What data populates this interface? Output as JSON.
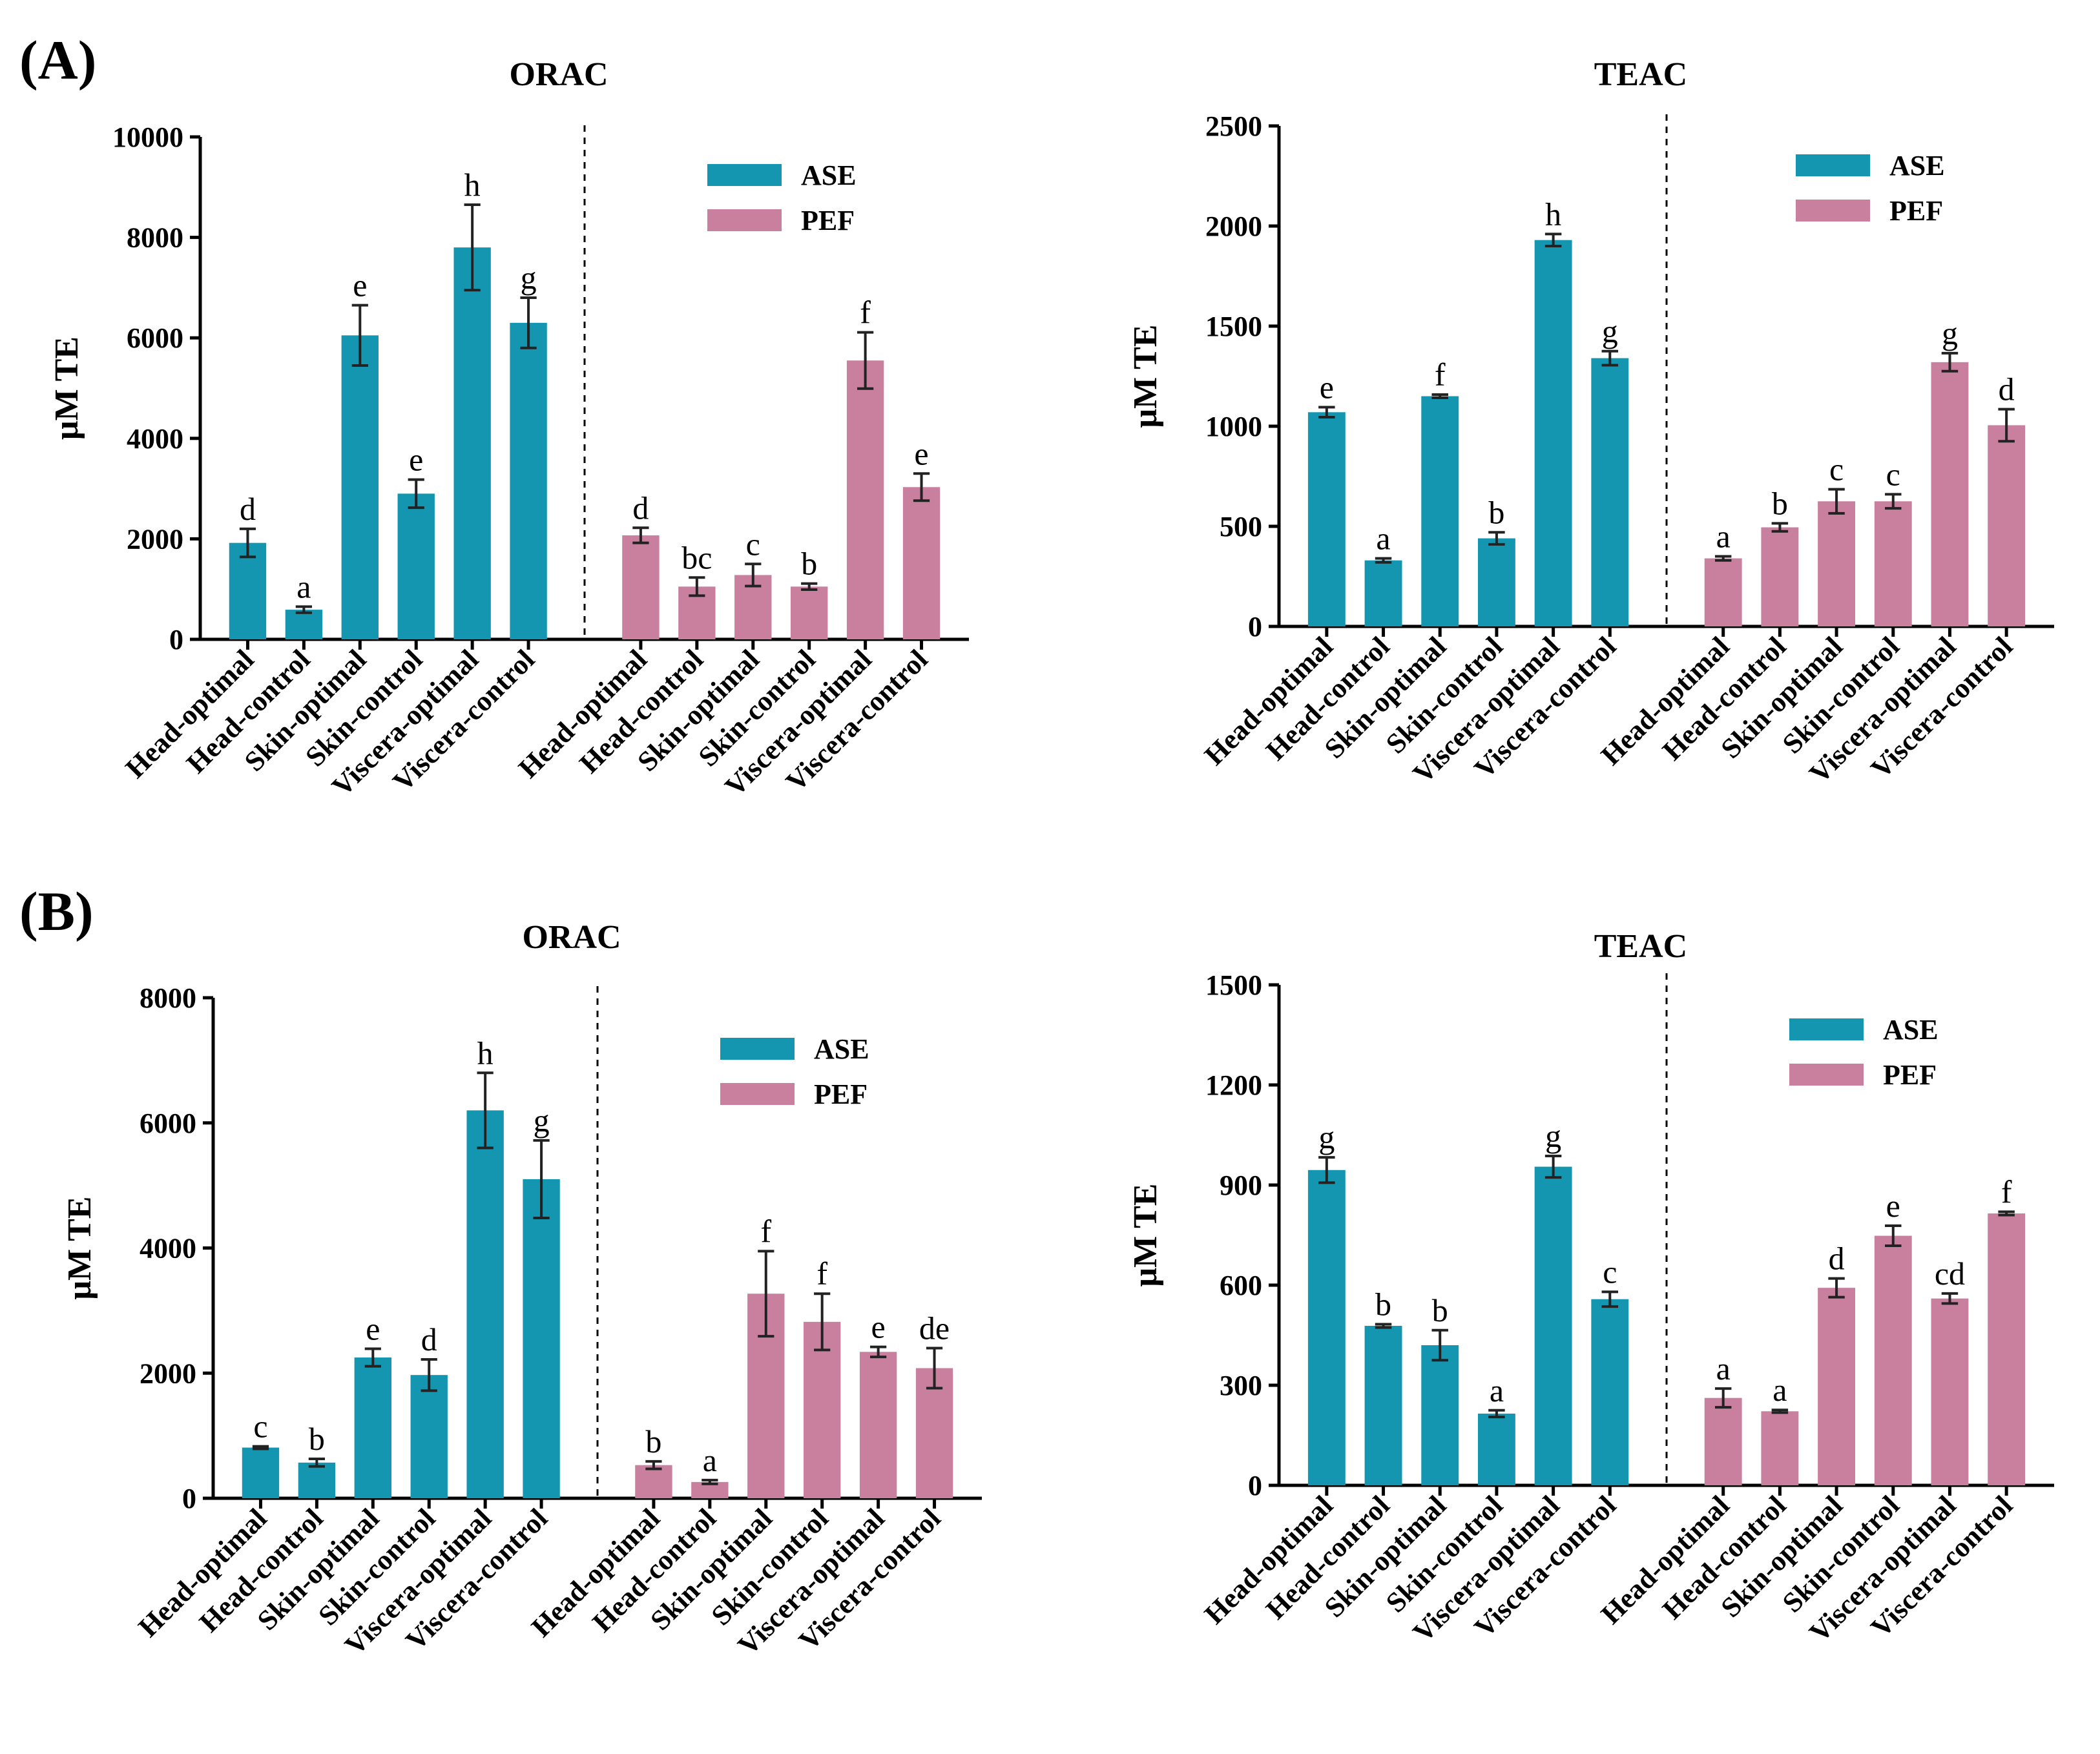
{
  "panels": [
    {
      "label": "(A)"
    },
    {
      "label": "(B)"
    }
  ],
  "colors": {
    "ASE": "#1496b0",
    "PEF": "#c9809e"
  },
  "chart_data": [
    {
      "type": "bar",
      "panel": "(A)",
      "title": "ORAC",
      "ylabel": "μM TE",
      "ylim": [
        0,
        10000
      ],
      "yticks": [
        0,
        2000,
        4000,
        6000,
        8000,
        10000
      ],
      "legend": [
        "ASE",
        "PEF"
      ],
      "legend_position": "top-right",
      "groups": [
        {
          "name": "ASE",
          "categories": [
            "Head-optimal",
            "Head-control",
            "Skin-optimal",
            "Skin-control",
            "Viscera-optimal",
            "Viscera-control"
          ],
          "values": [
            1920,
            590,
            6050,
            2900,
            7800,
            6300
          ],
          "errors": [
            280,
            60,
            600,
            280,
            850,
            500
          ],
          "letters": [
            "d",
            "a",
            "e",
            "e",
            "h",
            "g"
          ]
        },
        {
          "name": "PEF",
          "categories": [
            "Head-optimal",
            "Head-control",
            "Skin-optimal",
            "Skin-control",
            "Viscera-optimal",
            "Viscera-control"
          ],
          "values": [
            2070,
            1050,
            1280,
            1050,
            5550,
            3030
          ],
          "errors": [
            150,
            180,
            220,
            60,
            560,
            270
          ],
          "letters": [
            "d",
            "bc",
            "c",
            "b",
            "f",
            "e"
          ]
        }
      ]
    },
    {
      "type": "bar",
      "panel": "(A)",
      "title": "TEAC",
      "ylabel": "μM TE",
      "ylim": [
        0,
        2500
      ],
      "yticks": [
        0,
        500,
        1000,
        1500,
        2000,
        2500
      ],
      "legend": [
        "ASE",
        "PEF"
      ],
      "legend_position": "top-right",
      "groups": [
        {
          "name": "ASE",
          "categories": [
            "Head-optimal",
            "Head-control",
            "Skin-optimal",
            "Skin-control",
            "Viscera-optimal",
            "Viscera-control"
          ],
          "values": [
            1070,
            330,
            1150,
            440,
            1930,
            1340
          ],
          "errors": [
            25,
            10,
            8,
            30,
            30,
            35
          ],
          "letters": [
            "e",
            "a",
            "f",
            "b",
            "h",
            "g"
          ]
        },
        {
          "name": "PEF",
          "categories": [
            "Head-optimal",
            "Head-control",
            "Skin-optimal",
            "Skin-control",
            "Viscera-optimal",
            "Viscera-control"
          ],
          "values": [
            340,
            495,
            625,
            625,
            1320,
            1005
          ],
          "errors": [
            10,
            20,
            60,
            35,
            45,
            80
          ],
          "letters": [
            "a",
            "b",
            "c",
            "c",
            "g",
            "d"
          ]
        }
      ]
    },
    {
      "type": "bar",
      "panel": "(B)",
      "title": "ORAC",
      "ylabel": "μM TE",
      "ylim": [
        0,
        8000
      ],
      "yticks": [
        0,
        2000,
        4000,
        6000,
        8000
      ],
      "legend": [
        "ASE",
        "PEF"
      ],
      "legend_position": "top-right",
      "groups": [
        {
          "name": "ASE",
          "categories": [
            "Head-optimal",
            "Head-control",
            "Skin-optimal",
            "Skin-control",
            "Viscera-optimal",
            "Viscera-control"
          ],
          "values": [
            810,
            570,
            2250,
            1970,
            6200,
            5100
          ],
          "errors": [
            20,
            60,
            140,
            250,
            600,
            620
          ],
          "letters": [
            "c",
            "b",
            "e",
            "d",
            "h",
            "g"
          ]
        },
        {
          "name": "PEF",
          "categories": [
            "Head-optimal",
            "Head-control",
            "Skin-optimal",
            "Skin-control",
            "Viscera-optimal",
            "Viscera-control"
          ],
          "values": [
            530,
            260,
            3270,
            2820,
            2340,
            2080
          ],
          "errors": [
            60,
            30,
            680,
            450,
            80,
            320
          ],
          "letters": [
            "b",
            "a",
            "f",
            "f",
            "e",
            "de"
          ]
        }
      ]
    },
    {
      "type": "bar",
      "panel": "(B)",
      "title": "TEAC",
      "ylabel": "μM TE",
      "ylim": [
        0,
        1500
      ],
      "yticks": [
        0,
        300,
        600,
        900,
        1200,
        1500
      ],
      "legend": [
        "ASE",
        "PEF"
      ],
      "legend_position": "top-right",
      "groups": [
        {
          "name": "ASE",
          "categories": [
            "Head-optimal",
            "Head-control",
            "Skin-optimal",
            "Skin-control",
            "Viscera-optimal",
            "Viscera-control"
          ],
          "values": [
            945,
            478,
            420,
            215,
            955,
            558
          ],
          "errors": [
            38,
            5,
            45,
            10,
            32,
            22
          ],
          "letters": [
            "g",
            "b",
            "b",
            "a",
            "g",
            "c"
          ]
        },
        {
          "name": "PEF",
          "categories": [
            "Head-optimal",
            "Head-control",
            "Skin-optimal",
            "Skin-control",
            "Viscera-optimal",
            "Viscera-control"
          ],
          "values": [
            262,
            222,
            592,
            748,
            560,
            815
          ],
          "errors": [
            28,
            4,
            28,
            30,
            15,
            5
          ],
          "letters": [
            "a",
            "a",
            "d",
            "e",
            "cd",
            "f"
          ]
        }
      ]
    }
  ]
}
